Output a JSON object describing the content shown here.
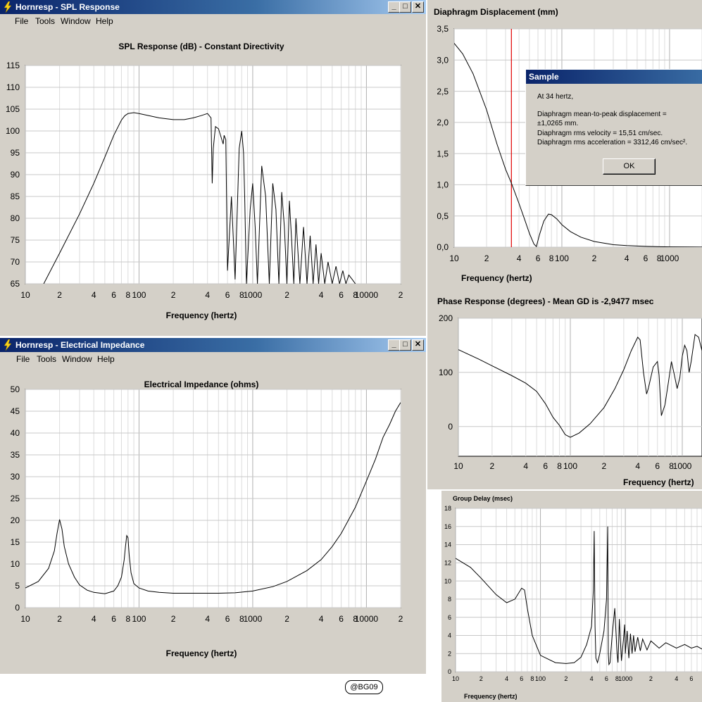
{
  "spl_window": {
    "title": "Hornresp - SPL Response",
    "menu": [
      "File",
      "Tools",
      "Window",
      "Help"
    ],
    "buttons": {
      "minimize": "_",
      "maximize": "□",
      "close": "✕"
    },
    "chart_title": "SPL Response (dB) - Constant Directivity",
    "xlabel": "Frequency (hertz)"
  },
  "imp_window": {
    "title": "Hornresp - Electrical Impedance",
    "menu": [
      "File",
      "Tools",
      "Window",
      "Help"
    ],
    "buttons": {
      "minimize": "_",
      "maximize": "□",
      "close": "✕"
    },
    "chart_title": "Electrical Impedance (ohms)",
    "xlabel": "Frequency (hertz)"
  },
  "disp_panel": {
    "chart_title": "Diaphragm Displacement (mm)",
    "xlabel": "Frequency (hertz)"
  },
  "phase_panel": {
    "chart_title": "Phase Response (degrees) - Mean GD is -2,9477 msec",
    "xlabel": "Frequency (hertz)"
  },
  "gd_panel": {
    "chart_title": "Group Delay (msec)",
    "xlabel": "Frequency (hertz)"
  },
  "sample_dialog": {
    "title": "Sample",
    "lines": [
      "At 34 hertz,",
      "Diaphragm mean-to-peak displacement =",
      "±1,0265 mm.",
      "Diaphragm rms velocity = 15,51 cm/sec.",
      "Diaphragm rms acceleration = 3312,46 cm/sec².",
      "OK"
    ]
  },
  "credit": "@BG09",
  "chart_data": [
    {
      "id": "spl",
      "type": "line",
      "title": "SPL Response (dB) - Constant Directivity",
      "xlabel": "Frequency (hertz)",
      "ylabel": "",
      "xscale": "log",
      "xlim": [
        10,
        20000
      ],
      "ylim": [
        65,
        115
      ],
      "ytick_labels": [
        "115",
        "110",
        "105",
        "100",
        "95",
        "90",
        "85",
        "80",
        "75",
        "70",
        "65"
      ],
      "xtick_labels": [
        [
          "10",
          10
        ],
        [
          "2",
          20
        ],
        [
          "4",
          40
        ],
        [
          "6",
          60
        ],
        [
          "8",
          80
        ],
        [
          "100",
          100
        ],
        [
          "2",
          200
        ],
        [
          "4",
          400
        ],
        [
          "6",
          600
        ],
        [
          "8",
          800
        ],
        [
          "1000",
          1000
        ],
        [
          "2",
          2000
        ],
        [
          "4",
          4000
        ],
        [
          "6",
          6000
        ],
        [
          "8",
          8000
        ],
        [
          "10000",
          10000
        ],
        [
          "2",
          20000
        ]
      ],
      "grid": true,
      "series": [
        {
          "x": [
            14.5,
            20,
            30,
            40,
            50,
            60,
            70,
            75,
            80,
            90,
            100,
            150,
            200,
            250,
            300,
            350,
            400,
            430,
            440,
            450,
            470,
            500,
            550,
            560,
            580,
            600,
            650,
            700,
            760,
            800,
            830,
            850,
            880,
            950,
            1000,
            1050,
            1100,
            1200,
            1300,
            1400,
            1500,
            1600,
            1700,
            1800,
            1900,
            2000,
            2100,
            2200,
            2300,
            2400,
            2600,
            2800,
            3000,
            3200,
            3400,
            3600,
            3800,
            4000,
            4300,
            4600,
            5000,
            5400,
            5800,
            6200,
            6600,
            7000,
            7500,
            8000
          ],
          "y": [
            65,
            72,
            81,
            88,
            94,
            99,
            102.5,
            103.5,
            104,
            104.2,
            104,
            103,
            102.6,
            102.6,
            103,
            103.5,
            104,
            103,
            88,
            96,
            101,
            100.5,
            97,
            99,
            98,
            68,
            85,
            66,
            96,
            100,
            95,
            85,
            65,
            82,
            88,
            78,
            65,
            92,
            85,
            65,
            88,
            82,
            65,
            86,
            78,
            65,
            84,
            75,
            65,
            80,
            65,
            78,
            65,
            76,
            65,
            74,
            65,
            72,
            65,
            70,
            65,
            69,
            65,
            68,
            65,
            67,
            66,
            65
          ]
        }
      ]
    },
    {
      "id": "impedance",
      "type": "line",
      "title": "Electrical Impedance (ohms)",
      "xlabel": "Frequency (hertz)",
      "ylabel": "",
      "xscale": "log",
      "xlim": [
        10,
        20000
      ],
      "ylim": [
        0,
        50
      ],
      "ytick_labels": [
        "50",
        "45",
        "40",
        "35",
        "30",
        "25",
        "20",
        "15",
        "10",
        "5",
        "0"
      ],
      "xtick_labels": [
        [
          "10",
          10
        ],
        [
          "2",
          20
        ],
        [
          "4",
          40
        ],
        [
          "6",
          60
        ],
        [
          "8",
          80
        ],
        [
          "100",
          100
        ],
        [
          "2",
          200
        ],
        [
          "4",
          400
        ],
        [
          "6",
          600
        ],
        [
          "8",
          800
        ],
        [
          "1000",
          1000
        ],
        [
          "2",
          2000
        ],
        [
          "4",
          4000
        ],
        [
          "6",
          6000
        ],
        [
          "8",
          8000
        ],
        [
          "10000",
          10000
        ],
        [
          "2",
          20000
        ]
      ],
      "grid": true,
      "series": [
        {
          "x": [
            10,
            13,
            16,
            18,
            19,
            20,
            21,
            22,
            24,
            27,
            30,
            35,
            40,
            50,
            60,
            65,
            70,
            74,
            76,
            78,
            80,
            82,
            85,
            90,
            100,
            120,
            150,
            200,
            300,
            400,
            500,
            700,
            1000,
            1500,
            2000,
            3000,
            4000,
            5000,
            6000,
            8000,
            10000,
            12000,
            14000,
            16000,
            18000,
            20000
          ],
          "y": [
            4.5,
            6,
            9,
            13,
            17,
            20.2,
            18,
            14,
            10,
            7,
            5.2,
            4,
            3.5,
            3.2,
            3.8,
            5,
            7,
            11,
            14,
            16.5,
            16,
            12,
            8,
            5.5,
            4.5,
            3.8,
            3.5,
            3.3,
            3.3,
            3.3,
            3.3,
            3.4,
            3.8,
            4.8,
            6,
            8.5,
            11,
            14,
            17,
            23,
            29,
            34,
            39,
            42,
            45,
            47
          ]
        }
      ]
    },
    {
      "id": "displacement",
      "type": "line",
      "title": "Diaphragm Displacement (mm)",
      "xlabel": "Frequency (hertz)",
      "ylabel": "",
      "xscale": "log",
      "xlim": [
        10,
        2000
      ],
      "ylim": [
        0,
        3.5
      ],
      "ytick_labels": [
        "3,5",
        "3,0",
        "2,5",
        "2,0",
        "1,5",
        "1,0",
        "0,5",
        "0,0"
      ],
      "xtick_labels": [
        [
          "10",
          10
        ],
        [
          "2",
          20
        ],
        [
          "4",
          40
        ],
        [
          "6",
          60
        ],
        [
          "8",
          80
        ],
        [
          "100",
          100
        ],
        [
          "2",
          200
        ],
        [
          "4",
          400
        ],
        [
          "6",
          600
        ],
        [
          "8",
          800
        ],
        [
          "1000",
          1000
        ]
      ],
      "marker_x": 34,
      "grid": true,
      "series": [
        {
          "x": [
            10,
            12,
            15,
            20,
            25,
            30,
            34,
            40,
            45,
            50,
            55,
            58,
            62,
            68,
            75,
            80,
            90,
            100,
            120,
            150,
            200,
            300,
            400,
            600,
            800,
            1000,
            1500,
            2000
          ],
          "y": [
            3.27,
            3.1,
            2.78,
            2.2,
            1.65,
            1.25,
            1.0265,
            0.7,
            0.45,
            0.22,
            0.05,
            0.01,
            0.2,
            0.42,
            0.53,
            0.52,
            0.45,
            0.36,
            0.25,
            0.16,
            0.09,
            0.04,
            0.025,
            0.012,
            0.007,
            0.005,
            0.002,
            0.001
          ]
        }
      ]
    },
    {
      "id": "phase",
      "type": "line",
      "title": "Phase Response (degrees) - Mean GD is -2,9477 msec",
      "xlabel": "Frequency (hertz)",
      "ylabel": "",
      "xscale": "log",
      "xlim": [
        10,
        1500
      ],
      "ylim": [
        -55,
        200
      ],
      "ytick_labels": [
        [
          "200",
          200
        ],
        [
          "100",
          100
        ],
        [
          "0",
          0
        ]
      ],
      "xtick_labels": [
        [
          "10",
          10
        ],
        [
          "2",
          20
        ],
        [
          "4",
          40
        ],
        [
          "6",
          60
        ],
        [
          "8",
          80
        ],
        [
          "100",
          100
        ],
        [
          "2",
          200
        ],
        [
          "4",
          400
        ],
        [
          "6",
          600
        ],
        [
          "8",
          800
        ],
        [
          "1000",
          1000
        ]
      ],
      "grid": true,
      "series": [
        {
          "x": [
            10,
            15,
            20,
            30,
            40,
            50,
            60,
            70,
            80,
            90,
            100,
            120,
            150,
            200,
            250,
            300,
            350,
            400,
            420,
            450,
            480,
            500,
            550,
            600,
            620,
            650,
            700,
            750,
            800,
            850,
            900,
            950,
            1000,
            1050,
            1100,
            1150,
            1200,
            1300,
            1400,
            1500
          ],
          "y": [
            142,
            125,
            112,
            94,
            80,
            65,
            42,
            17,
            2,
            -15,
            -20,
            -12,
            5,
            35,
            70,
            105,
            140,
            165,
            160,
            100,
            60,
            72,
            110,
            120,
            95,
            20,
            40,
            80,
            120,
            95,
            70,
            90,
            130,
            150,
            140,
            100,
            120,
            170,
            165,
            140
          ]
        }
      ]
    },
    {
      "id": "group_delay",
      "type": "line",
      "title": "Group Delay (msec)",
      "xlabel": "Frequency (hertz)",
      "ylabel": "",
      "xscale": "log",
      "xlim": [
        10,
        8000
      ],
      "ylim": [
        0,
        18
      ],
      "ytick_labels": [
        "18",
        "16",
        "14",
        "12",
        "10",
        "8",
        "6",
        "4",
        "2",
        "0"
      ],
      "xtick_labels": [
        [
          "10",
          10
        ],
        [
          "2",
          20
        ],
        [
          "4",
          40
        ],
        [
          "6",
          60
        ],
        [
          "8",
          80
        ],
        [
          "100",
          100
        ],
        [
          "2",
          200
        ],
        [
          "4",
          400
        ],
        [
          "6",
          600
        ],
        [
          "8",
          800
        ],
        [
          "1000",
          1000
        ],
        [
          "2",
          2000
        ],
        [
          "4",
          4000
        ],
        [
          "6",
          6000
        ]
      ],
      "grid": true,
      "series": [
        {
          "x": [
            10,
            15,
            20,
            30,
            40,
            50,
            60,
            65,
            70,
            80,
            100,
            150,
            200,
            250,
            300,
            350,
            400,
            420,
            430,
            440,
            450,
            470,
            500,
            560,
            600,
            620,
            630,
            640,
            660,
            700,
            750,
            800,
            820,
            830,
            850,
            900,
            950,
            980,
            1000,
            1050,
            1100,
            1150,
            1200,
            1250,
            1300,
            1400,
            1500,
            1600,
            1800,
            2000,
            2500,
            3000,
            4000,
            5000,
            6000,
            7000,
            8000
          ],
          "y": [
            12.5,
            11.5,
            10.3,
            8.5,
            7.6,
            8,
            9.2,
            9,
            7,
            4,
            1.8,
            1,
            0.9,
            1,
            1.6,
            3,
            5,
            9,
            15.5,
            5,
            1.5,
            1,
            2,
            4.5,
            8,
            16,
            2,
            0.8,
            1,
            4,
            7,
            2,
            1,
            2.5,
            5.8,
            1.2,
            3.5,
            5.2,
            2,
            4.5,
            1.5,
            4.2,
            2,
            4,
            2.2,
            3.8,
            2.3,
            3.6,
            2.4,
            3.4,
            2.6,
            3.2,
            2.6,
            3,
            2.6,
            2.8,
            2.5
          ]
        }
      ]
    }
  ]
}
